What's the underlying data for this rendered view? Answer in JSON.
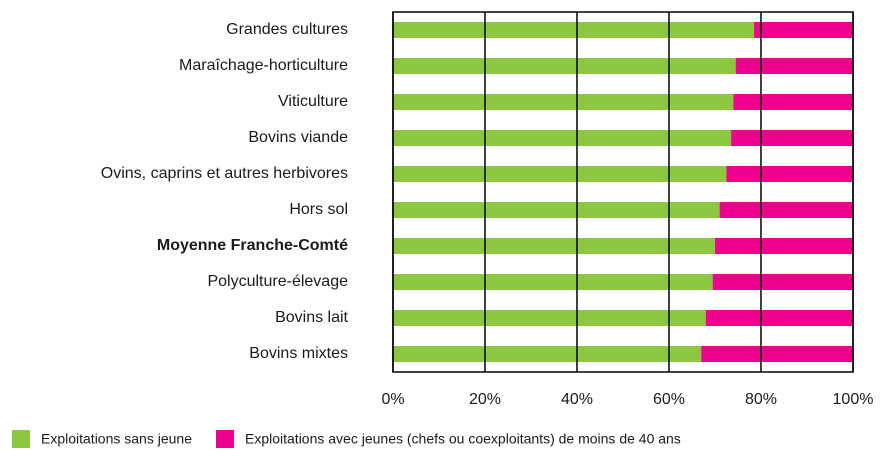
{
  "chart_data": {
    "type": "stacked_barh",
    "categories": [
      "Grandes cultures",
      "Maraîchage-horticulture",
      "Viticulture",
      "Bovins viande",
      "Ovins, caprins et autres herbivores",
      "Hors sol",
      "Moyenne Franche-Comté",
      "Polyculture-élevage",
      "Bovins lait",
      "Bovins mixtes"
    ],
    "series": [
      {
        "name": "Exploitations sans jeune",
        "color": "#8dc63f",
        "values": [
          78.5,
          74.5,
          74,
          73.5,
          72.5,
          71,
          70,
          69.5,
          68,
          67
        ]
      },
      {
        "name": "Exploitations avec jeunes (chefs ou coexploitants) de moins de 40 ans",
        "color": "#ec008c",
        "values": [
          21.5,
          25.5,
          26,
          26.5,
          27.5,
          29,
          30,
          30.5,
          32,
          33
        ]
      }
    ],
    "xlim": [
      0,
      100
    ],
    "xticks": [
      {
        "value": 0,
        "label": "0%"
      },
      {
        "value": 20,
        "label": "20%"
      },
      {
        "value": 40,
        "label": "40%"
      },
      {
        "value": 60,
        "label": "60%"
      },
      {
        "value": 80,
        "label": "80%"
      },
      {
        "value": 100,
        "label": "100%"
      }
    ],
    "grid": true,
    "legend": "bottom"
  }
}
